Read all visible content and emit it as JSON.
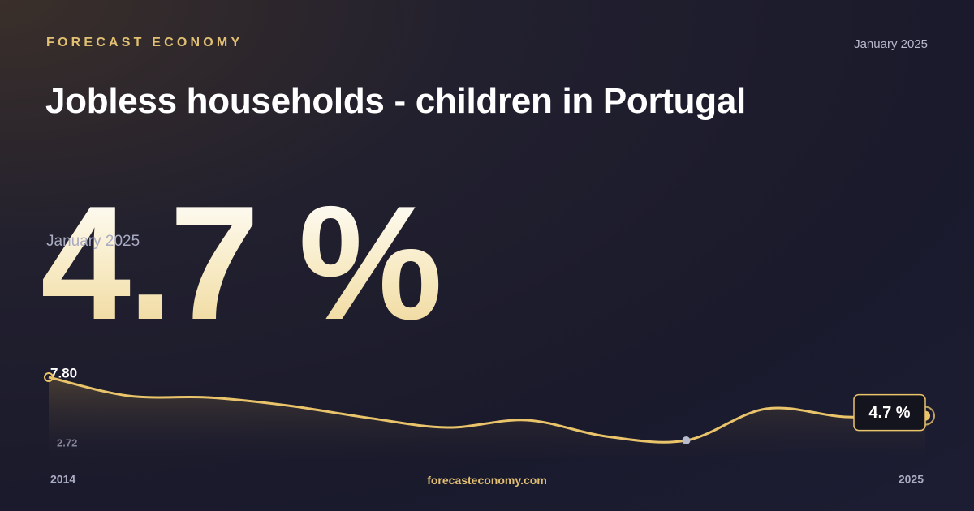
{
  "header": {
    "brand": "FORECAST ECONOMY",
    "date": "January 2025",
    "title": "Jobless households - children in Portugal"
  },
  "headline": {
    "value": "4.7 %",
    "date": "January 2025"
  },
  "chart_data": {
    "type": "line",
    "x": [
      2014,
      2015,
      2016,
      2017,
      2018,
      2019,
      2020,
      2021,
      2022,
      2023,
      2024,
      2025
    ],
    "series": [
      {
        "color": "#e9c46a",
        "values": [
          7.8,
          6.3,
          6.17,
          5.52,
          4.54,
          3.76,
          4.35,
          3.04,
          2.72,
          5.26,
          4.61,
          4.7
        ],
        "value_labels": [
          null,
          null,
          null,
          null,
          null,
          null,
          null,
          null,
          null,
          null,
          null,
          "4.7 %"
        ]
      }
    ],
    "ylim": [
      2.72,
      7.8
    ],
    "yticks": [
      2.72,
      {
        "value": 7.8,
        "label": "7.80"
      }
    ]
  },
  "footer": {
    "site": "forecasteconomy.com"
  }
}
